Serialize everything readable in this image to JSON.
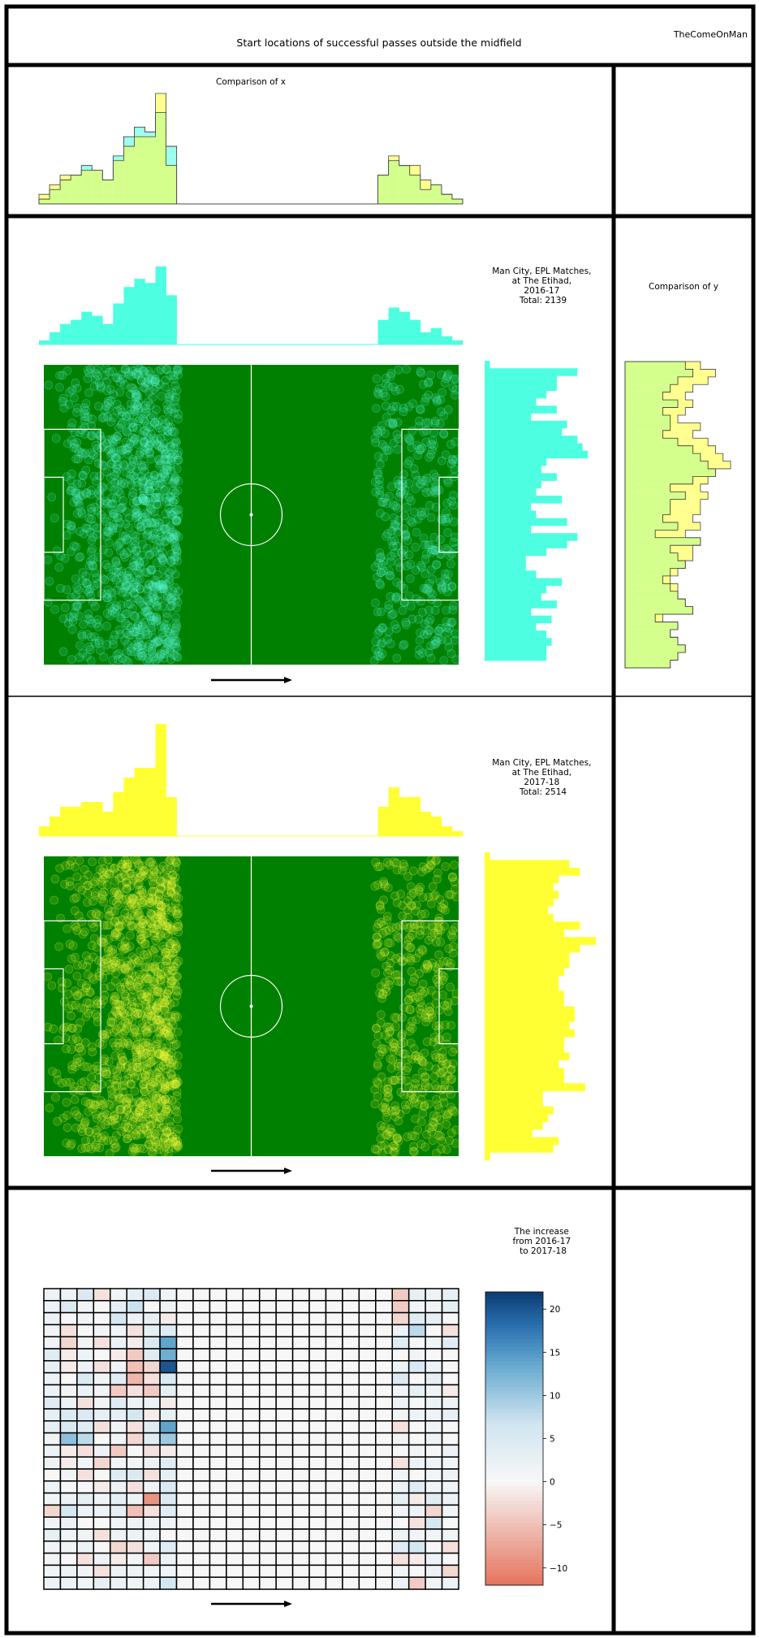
{
  "title": "Start locations of successful passes outside the midfield",
  "watermark": "TheComeOnMan",
  "colors": {
    "pitch": "#008000",
    "lines": "#ffffff",
    "series_2016_17": "#4dffe0",
    "series_2017_18": "#ffff33",
    "overlap": "#d4ff8c",
    "cool": "#0b3b73",
    "warm": "#e5735c"
  },
  "chart_data": [
    {
      "type": "histogram",
      "title": "Comparison of x",
      "x_bins": 40,
      "series": [
        {
          "name": "Man City, EPL Matches, at The Etihad, 2016-17",
          "values": [
            1,
            3,
            5,
            6,
            8,
            7,
            5,
            10,
            14,
            16,
            15,
            19,
            12,
            0,
            0,
            0,
            0,
            0,
            0,
            0,
            0,
            0,
            0,
            0,
            0,
            0,
            0,
            0,
            0,
            0,
            0,
            0,
            6,
            9,
            8,
            6,
            3,
            4,
            2,
            1
          ]
        },
        {
          "name": "Man City, EPL Matches, at The Etihad, 2017-18",
          "values": [
            2,
            4,
            6,
            6,
            7,
            7,
            5,
            9,
            12,
            14,
            14,
            23,
            8,
            0,
            0,
            0,
            0,
            0,
            0,
            0,
            0,
            0,
            0,
            0,
            0,
            0,
            0,
            0,
            0,
            0,
            0,
            0,
            6,
            10,
            8,
            8,
            5,
            4,
            2,
            1
          ]
        }
      ]
    },
    {
      "type": "histogram",
      "title": "Comparison of y",
      "orientation": "horizontal",
      "y_bins": 40,
      "series": [
        {
          "name": "2016-17",
          "values": [
            8,
            9,
            7,
            6,
            5,
            7,
            5,
            6,
            6,
            5,
            7,
            9,
            10,
            11,
            12,
            9,
            6,
            8,
            6,
            6,
            5,
            7,
            4,
            10,
            6,
            7,
            8,
            6,
            5,
            6,
            7,
            8,
            9,
            4,
            7,
            6,
            7,
            8,
            7,
            6
          ]
        },
        {
          "name": "2017-18",
          "values": [
            10,
            12,
            11,
            9,
            8,
            9,
            8,
            7,
            10,
            9,
            11,
            12,
            13,
            14,
            12,
            11,
            10,
            11,
            10,
            10,
            9,
            10,
            8,
            10,
            9,
            9,
            8,
            7,
            6,
            7,
            7,
            8,
            9,
            5,
            7,
            6,
            7,
            8,
            7,
            6
          ]
        }
      ]
    },
    {
      "type": "scatter",
      "title": "Man City, EPL Matches, at The Etihad, 2016-17",
      "title_lines": [
        "Man City, EPL Matches,",
        "at The Etihad,",
        "2016-17",
        "Total: 2139"
      ],
      "total": 2139,
      "x_hist": [
        1,
        3,
        5,
        6,
        8,
        7,
        5,
        10,
        14,
        16,
        15,
        19,
        12,
        0,
        0,
        0,
        0,
        0,
        0,
        0,
        0,
        0,
        0,
        0,
        0,
        0,
        0,
        0,
        0,
        0,
        0,
        0,
        6,
        9,
        8,
        6,
        3,
        4,
        2,
        1
      ],
      "y_hist": [
        1,
        18,
        14,
        14,
        12,
        10,
        14,
        9,
        16,
        15,
        18,
        19,
        20,
        12,
        11,
        14,
        11,
        10,
        15,
        9,
        10,
        16,
        9,
        18,
        16,
        12,
        8,
        8,
        10,
        15,
        12,
        11,
        14,
        9,
        13,
        10,
        12,
        13,
        12,
        12
      ],
      "x_range": [
        0,
        100
      ],
      "y_range": [
        0,
        100
      ]
    },
    {
      "type": "scatter",
      "title": "Man City, EPL Matches, at The Etihad, 2017-18",
      "title_lines": [
        "Man City, EPL Matches,",
        "at The Etihad,",
        "2017-18",
        "Total: 2514"
      ],
      "total": 2514,
      "x_hist": [
        2,
        4,
        6,
        6,
        7,
        7,
        5,
        9,
        12,
        14,
        14,
        23,
        8,
        0,
        0,
        0,
        0,
        0,
        0,
        0,
        0,
        0,
        0,
        0,
        0,
        0,
        0,
        0,
        0,
        0,
        0,
        0,
        6,
        10,
        8,
        8,
        5,
        4,
        2,
        1
      ],
      "y_hist": [
        1,
        16,
        18,
        14,
        13,
        14,
        13,
        12,
        13,
        18,
        15,
        21,
        18,
        16,
        16,
        15,
        14,
        14,
        15,
        15,
        17,
        17,
        16,
        17,
        15,
        15,
        16,
        14,
        15,
        15,
        19,
        11,
        11,
        13,
        12,
        11,
        9,
        14,
        13,
        1
      ],
      "x_range": [
        0,
        100
      ],
      "y_range": [
        0,
        100
      ]
    },
    {
      "type": "heatmap",
      "title": "The increase from 2016-17 to 2017-18",
      "title_lines": [
        "The increase",
        "from 2016-17",
        "to 2017-18"
      ],
      "rows": 25,
      "cols": 25,
      "colorbar": {
        "min": -12,
        "max": 22,
        "ticks": [
          -10,
          -5,
          0,
          5,
          10,
          15,
          20
        ],
        "tick_labels": [
          "−10",
          "−5",
          "0",
          "5",
          "10",
          "15",
          "20"
        ]
      },
      "values": [
        [
          2,
          2,
          5,
          -2,
          1,
          3,
          5,
          1,
          0,
          0,
          0,
          0,
          0,
          0,
          0,
          0,
          0,
          0,
          0,
          0,
          0,
          -4,
          3,
          2,
          3
        ],
        [
          2,
          5,
          1,
          0,
          3,
          7,
          0,
          1,
          0,
          0,
          0,
          0,
          0,
          0,
          0,
          0,
          0,
          0,
          0,
          0,
          0,
          -4,
          1,
          1,
          3
        ],
        [
          2,
          0,
          1,
          0,
          6,
          2,
          3,
          -1,
          0,
          0,
          0,
          0,
          0,
          0,
          0,
          0,
          0,
          0,
          0,
          0,
          0,
          -3,
          4,
          3,
          0
        ],
        [
          1,
          -2,
          0,
          1,
          1,
          -2,
          3,
          4,
          0,
          0,
          0,
          0,
          0,
          0,
          0,
          0,
          0,
          0,
          0,
          0,
          0,
          2,
          8,
          0,
          -2
        ],
        [
          1,
          -3,
          1,
          -2,
          2,
          -1,
          5,
          14,
          0,
          0,
          0,
          0,
          0,
          0,
          0,
          0,
          0,
          0,
          0,
          0,
          0,
          4,
          0,
          1,
          4
        ],
        [
          4,
          -1,
          2,
          0,
          -1,
          -4,
          4,
          13,
          0,
          0,
          0,
          0,
          0,
          0,
          0,
          0,
          0,
          0,
          0,
          0,
          0,
          0,
          1,
          0,
          0
        ],
        [
          3,
          -1,
          2,
          -2,
          1,
          -5,
          -3,
          20,
          0,
          0,
          0,
          0,
          0,
          0,
          0,
          0,
          0,
          0,
          0,
          0,
          0,
          2,
          5,
          2,
          0
        ],
        [
          2,
          0,
          5,
          1,
          4,
          -6,
          -2,
          5,
          0,
          0,
          0,
          0,
          0,
          0,
          0,
          0,
          0,
          0,
          0,
          0,
          0,
          5,
          0,
          3,
          0
        ],
        [
          2,
          1,
          2,
          1,
          -4,
          -2,
          -4,
          3,
          0,
          0,
          0,
          0,
          0,
          0,
          0,
          0,
          0,
          0,
          0,
          0,
          0,
          1,
          3,
          1,
          -1
        ],
        [
          4,
          2,
          -2,
          1,
          4,
          2,
          2,
          -1,
          0,
          0,
          0,
          0,
          0,
          0,
          0,
          0,
          0,
          0,
          0,
          0,
          0,
          2,
          0,
          2,
          2
        ],
        [
          3,
          5,
          5,
          3,
          3,
          6,
          -1,
          3,
          0,
          0,
          0,
          0,
          0,
          0,
          0,
          0,
          0,
          0,
          0,
          0,
          0,
          1,
          2,
          2,
          3
        ],
        [
          3,
          5,
          4,
          -2,
          1,
          -2,
          4,
          14,
          0,
          0,
          0,
          0,
          0,
          0,
          0,
          0,
          0,
          0,
          0,
          0,
          0,
          -2,
          0,
          1,
          0
        ],
        [
          1,
          11,
          8,
          0,
          1,
          -3,
          4,
          10,
          0,
          0,
          0,
          0,
          0,
          0,
          0,
          0,
          0,
          0,
          0,
          0,
          0,
          1,
          0,
          2,
          0
        ],
        [
          2,
          -1,
          -2,
          2,
          -4,
          0,
          -2,
          -1,
          0,
          0,
          0,
          0,
          0,
          0,
          0,
          0,
          0,
          0,
          0,
          0,
          0,
          0,
          1,
          0,
          2
        ],
        [
          2,
          -1,
          1,
          -3,
          1,
          1,
          2,
          4,
          0,
          0,
          0,
          0,
          0,
          0,
          0,
          0,
          0,
          0,
          0,
          0,
          0,
          -2,
          2,
          2,
          1
        ],
        [
          0,
          1,
          -2,
          0,
          4,
          5,
          -2,
          3,
          0,
          0,
          0,
          0,
          0,
          0,
          0,
          0,
          0,
          0,
          0,
          0,
          0,
          1,
          0,
          1,
          2
        ],
        [
          2,
          0,
          0,
          -1,
          2,
          -2,
          1,
          5,
          0,
          0,
          0,
          0,
          0,
          0,
          0,
          0,
          0,
          0,
          0,
          0,
          0,
          2,
          4,
          1,
          1
        ],
        [
          1,
          2,
          3,
          1,
          3,
          2,
          -9,
          5,
          0,
          0,
          0,
          0,
          0,
          0,
          0,
          0,
          0,
          0,
          0,
          0,
          0,
          3,
          -1,
          4,
          2
        ],
        [
          -3,
          6,
          2,
          2,
          3,
          -5,
          -2,
          4,
          0,
          0,
          0,
          0,
          0,
          0,
          0,
          0,
          0,
          0,
          0,
          0,
          0,
          1,
          2,
          -3,
          1
        ],
        [
          1,
          2,
          0,
          0,
          1,
          2,
          2,
          1,
          0,
          0,
          0,
          0,
          0,
          0,
          0,
          0,
          0,
          0,
          0,
          0,
          0,
          0,
          -2,
          6,
          0
        ],
        [
          3,
          1,
          1,
          -2,
          2,
          2,
          1,
          0,
          0,
          0,
          0,
          0,
          0,
          0,
          0,
          0,
          0,
          0,
          0,
          0,
          0,
          2,
          1,
          1,
          1
        ],
        [
          1,
          1,
          2,
          0,
          -3,
          -2,
          1,
          4,
          0,
          0,
          0,
          0,
          0,
          0,
          0,
          0,
          0,
          0,
          0,
          0,
          0,
          4,
          6,
          0,
          -2
        ],
        [
          1,
          0,
          -2,
          2,
          -1,
          1,
          -4,
          2,
          0,
          0,
          0,
          0,
          0,
          0,
          0,
          0,
          0,
          0,
          0,
          0,
          0,
          -2,
          -1,
          2,
          0
        ],
        [
          1,
          2,
          1,
          -2,
          2,
          2,
          1,
          1,
          0,
          0,
          0,
          0,
          0,
          0,
          0,
          0,
          0,
          0,
          0,
          0,
          0,
          1,
          0,
          2,
          -3
        ],
        [
          2,
          2,
          1,
          3,
          2,
          1,
          2,
          6,
          0,
          0,
          0,
          0,
          0,
          0,
          0,
          0,
          0,
          0,
          0,
          0,
          0,
          2,
          -4,
          1,
          2
        ]
      ]
    }
  ]
}
